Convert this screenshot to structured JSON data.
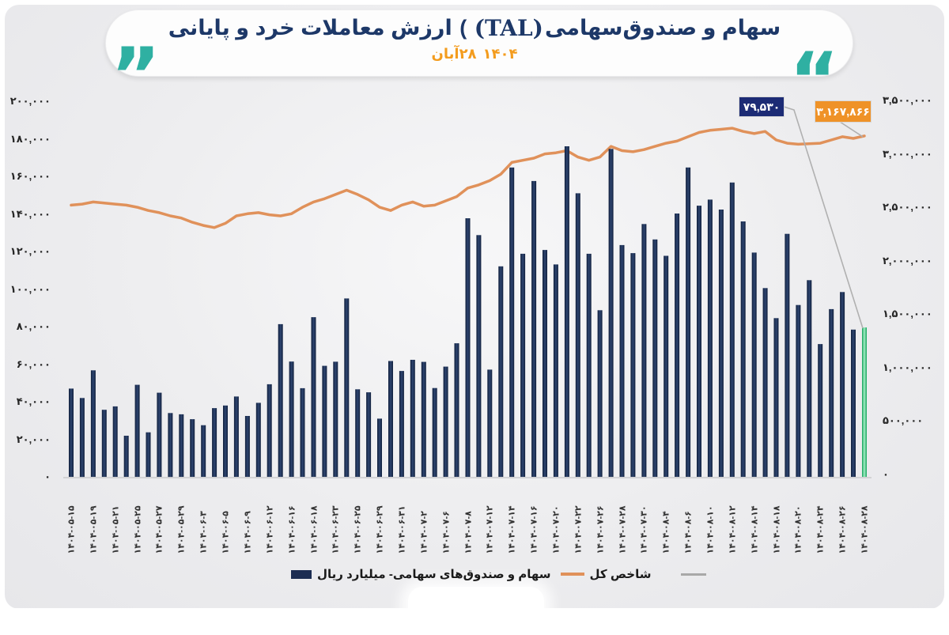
{
  "header": {
    "title_part1": "ارزش معاملات خرد و پایانی",
    "title_paren": " ( ",
    "title_latin": "(TAL)",
    "title_part2": "سهام و صندوق‌سهامی",
    "subtitle_day_month": "۲۸آبان",
    "subtitle_year": "۱۴۰۴",
    "quote_left_glyph": "”",
    "quote_right_glyph": "“"
  },
  "colors": {
    "title_navy": "#1d3868",
    "quote_teal": "#2fb0a2",
    "subtitle_orange": "#f39c1e",
    "bar_navy": "#1c2d52",
    "bar_highlight_green": "#12a35b",
    "index_line_orange": "#e0915a",
    "leader_gray": "#b0b0b0",
    "callout_navy_bg": "#1c2b75",
    "callout_orange_bg": "#ef9227"
  },
  "callouts": {
    "last_bar_value": "۷۹,۵۳۰",
    "last_index_value": "۳,۱۶۷,۸۶۶"
  },
  "legend": [
    {
      "label": "سهام و صندوق‌های سهامی- میلیارد ریال",
      "swatch": "bar-navy"
    },
    {
      "label": "شاخص کل",
      "swatch": "line-orange"
    },
    {
      "label": "",
      "swatch": "line-gray"
    }
  ],
  "axes": {
    "left": [
      {
        "label": "۲۰۰,۰۰۰",
        "value": 200000
      },
      {
        "label": "۱۸۰,۰۰۰",
        "value": 180000
      },
      {
        "label": "۱۶۰,۰۰۰",
        "value": 160000
      },
      {
        "label": "۱۴۰,۰۰۰",
        "value": 140000
      },
      {
        "label": "۱۲۰,۰۰۰",
        "value": 120000
      },
      {
        "label": "۱۰۰,۰۰۰",
        "value": 100000
      },
      {
        "label": "۸۰,۰۰۰",
        "value": 80000
      },
      {
        "label": "۶۰,۰۰۰",
        "value": 60000
      },
      {
        "label": "۴۰,۰۰۰",
        "value": 40000
      },
      {
        "label": "۲۰,۰۰۰",
        "value": 20000
      },
      {
        "label": "۰",
        "value": 0
      }
    ],
    "right": [
      {
        "label": "۳,۵۰۰,۰۰۰",
        "value": 3500000
      },
      {
        "label": "۳,۰۰۰,۰۰۰",
        "value": 3000000
      },
      {
        "label": "۲,۵۰۰,۰۰۰",
        "value": 2500000
      },
      {
        "label": "۲,۰۰۰,۰۰۰",
        "value": 2000000
      },
      {
        "label": "۱,۵۰۰,۰۰۰",
        "value": 1500000
      },
      {
        "label": "۱,۰۰۰,۰۰۰",
        "value": 1000000
      },
      {
        "label": "۵۰۰,۰۰۰",
        "value": 500000
      },
      {
        "label": "۰",
        "value": 0
      }
    ]
  },
  "chart_data": {
    "type": "bar+line",
    "title": "ارزش معاملات خرد و پایانی (TAL) سهام و صندوق سهامی",
    "subtitle": "۲۸آبان ۱۴۰۴",
    "ylim_left": [
      0,
      200000
    ],
    "ylim_right": [
      0,
      3500000
    ],
    "grid": false,
    "legend_position": "bottom",
    "x_tick_labels": [
      "۱۴۰۴-۰۵-۱۵",
      "۱۴۰۴-۰۵-۱۹",
      "۱۴۰۴-۰۵-۲۱",
      "۱۴۰۴-۰۵-۲۵",
      "۱۴۰۴-۰۵-۲۷",
      "۱۴۰۴-۰۵-۲۹",
      "۱۴۰۴-۰۶-۳",
      "۱۴۰۴-۰۶-۵",
      "۱۴۰۴-۰۶-۹",
      "۱۴۰۴-۰۶-۱۲",
      "۱۴۰۴-۰۶-۱۶",
      "۱۴۰۴-۰۶-۱۸",
      "۱۴۰۴-۰۶-۲۳",
      "۱۴۰۴-۰۶-۲۵",
      "۱۴۰۴-۰۶-۲۹",
      "۱۴۰۴-۰۶-۳۱",
      "۱۴۰۴-۰۷-۲",
      "۱۴۰۴-۰۷-۶",
      "۱۴۰۴-۰۷-۸",
      "۱۴۰۴-۰۷-۱۲",
      "۱۴۰۴-۰۷-۱۴",
      "۱۴۰۴-۰۷-۱۶",
      "۱۴۰۴-۰۷-۲۰",
      "۱۴۰۴-۰۷-۲۲",
      "۱۴۰۴-۰۷-۲۶",
      "۱۴۰۴-۰۷-۲۸",
      "۱۴۰۴-۰۷-۳۰",
      "۱۴۰۴-۰۸-۴",
      "۱۴۰۴-۰۸-۶",
      "۱۴۰۴-۰۸-۱۰",
      "۱۴۰۴-۰۸-۱۲",
      "۱۴۰۴-۰۸-۱۴",
      "۱۴۰۴-۰۸-۱۸",
      "۱۴۰۴-۰۸-۲۰",
      "۱۴۰۴-۰۸-۲۴",
      "۱۴۰۴-۰۸-۲۶",
      "۱۴۰۴-۰۸-۲۸"
    ],
    "x_tick_every_n_bars": 2,
    "series": [
      {
        "name": "سهام و صندوق‌های سهامی- میلیارد ریال",
        "type": "bar",
        "axis": "left",
        "unit": "میلیارد ریال",
        "values": [
          47000,
          42000,
          56700,
          35700,
          37500,
          21900,
          49000,
          23700,
          44800,
          34000,
          33300,
          30700,
          27500,
          36600,
          38000,
          42800,
          32400,
          39400,
          49300,
          81300,
          61400,
          47200,
          85000,
          59100,
          61300,
          95000,
          46600,
          45000,
          31000,
          61700,
          56400,
          62300,
          61200,
          47300,
          58700,
          71100,
          137700,
          128700,
          57100,
          112100,
          164700,
          118800,
          157500,
          120800,
          113100,
          176000,
          151000,
          118800,
          88700,
          174600,
          123400,
          119100,
          134600,
          126400,
          117700,
          140200,
          164700,
          144400,
          147600,
          142300,
          156700,
          136000,
          119400,
          100500,
          84500,
          129400,
          91500,
          104700,
          70700,
          89300,
          98400,
          78400,
          79530
        ],
        "last_value_label": "۷۹,۵۳۰",
        "last_bar_highlighted_green": true
      },
      {
        "name": "شاخص کل",
        "type": "line",
        "axis": "right",
        "values": [
          2520000,
          2530000,
          2550000,
          2540000,
          2530000,
          2520000,
          2500000,
          2470000,
          2450000,
          2420000,
          2400000,
          2360000,
          2330000,
          2310000,
          2350000,
          2420000,
          2440000,
          2450000,
          2430000,
          2420000,
          2440000,
          2500000,
          2550000,
          2580000,
          2620000,
          2660000,
          2620000,
          2570000,
          2500000,
          2470000,
          2520000,
          2550000,
          2510000,
          2520000,
          2560000,
          2600000,
          2680000,
          2710000,
          2750000,
          2810000,
          2920000,
          2940000,
          2960000,
          3000000,
          3010000,
          3030000,
          2970000,
          2940000,
          2970000,
          3070000,
          3030000,
          3020000,
          3040000,
          3070000,
          3100000,
          3120000,
          3160000,
          3200000,
          3220000,
          3230000,
          3240000,
          3210000,
          3190000,
          3210000,
          3130000,
          3100000,
          3090000,
          3095000,
          3100000,
          3130000,
          3160000,
          3145000,
          3167866
        ],
        "last_value_label": "۳,۱۶۷,۸۶۶"
      }
    ]
  }
}
